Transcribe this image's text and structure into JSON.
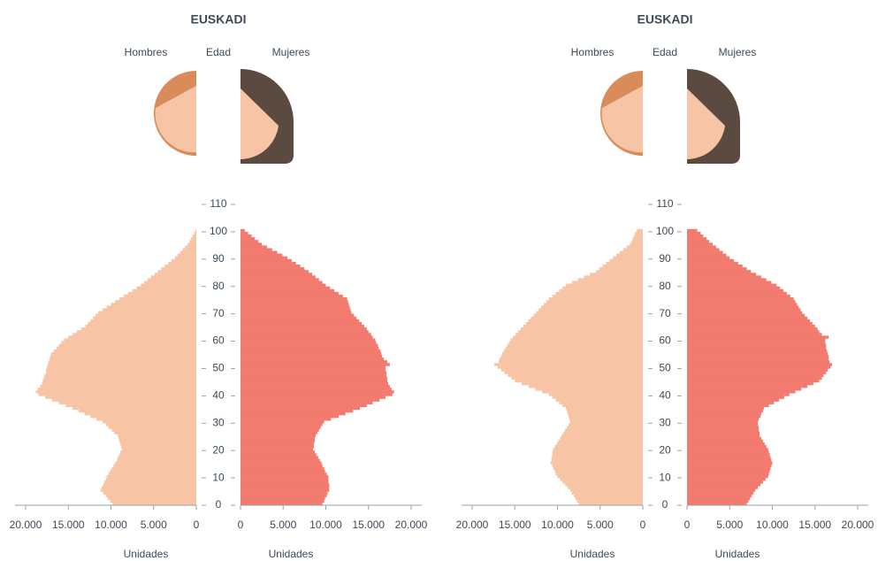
{
  "chart_data": [
    {
      "type": "population-pyramid",
      "title": "EUSKADI",
      "y_label": "Edad",
      "x_label": "Unidades",
      "x": [
        0,
        1,
        2,
        3,
        4,
        5,
        6,
        7,
        8,
        9,
        10,
        11,
        12,
        13,
        14,
        15,
        16,
        17,
        18,
        19,
        20,
        21,
        22,
        23,
        24,
        25,
        26,
        27,
        28,
        29,
        30,
        31,
        32,
        33,
        34,
        35,
        36,
        37,
        38,
        39,
        40,
        41,
        42,
        43,
        44,
        45,
        46,
        47,
        48,
        49,
        50,
        51,
        52,
        53,
        54,
        55,
        56,
        57,
        58,
        59,
        60,
        61,
        62,
        63,
        64,
        65,
        66,
        67,
        68,
        69,
        70,
        71,
        72,
        73,
        74,
        75,
        76,
        77,
        78,
        79,
        80,
        81,
        82,
        83,
        84,
        85,
        86,
        87,
        88,
        89,
        90,
        91,
        92,
        93,
        94,
        95,
        96,
        97,
        98,
        99,
        100
      ],
      "series": [
        {
          "name": "Hombres",
          "color": "#f7c4a5",
          "values": [
            9800,
            10100,
            10400,
            10600,
            10900,
            11200,
            11100,
            10900,
            10800,
            10600,
            10500,
            10300,
            10100,
            9900,
            9700,
            9500,
            9300,
            9200,
            9000,
            8900,
            8700,
            8800,
            8900,
            9000,
            9100,
            9200,
            9600,
            9900,
            10300,
            10600,
            11000,
            11700,
            12400,
            13100,
            13800,
            14500,
            15300,
            16100,
            16900,
            17700,
            18500,
            18800,
            18600,
            18300,
            18100,
            18000,
            17900,
            17800,
            17600,
            17600,
            17500,
            17400,
            17300,
            17200,
            17100,
            17000,
            16700,
            16400,
            16100,
            15800,
            15500,
            15000,
            14500,
            14000,
            13500,
            13000,
            12700,
            12400,
            12100,
            11800,
            11500,
            11000,
            10500,
            10000,
            9500,
            9000,
            8500,
            8000,
            7500,
            7000,
            6500,
            6100,
            5700,
            5300,
            4900,
            4500,
            4100,
            3700,
            3300,
            2900,
            2500,
            2200,
            1900,
            1600,
            1300,
            1000,
            800,
            600,
            400,
            250,
            100
          ]
        },
        {
          "name": "Mujeres",
          "color": "#f27a6e",
          "values": [
            9600,
            9800,
            9900,
            10100,
            10200,
            10400,
            10400,
            10400,
            10300,
            10300,
            10300,
            10100,
            9900,
            9800,
            9600,
            9500,
            9300,
            9100,
            8900,
            8700,
            8500,
            8600,
            8600,
            8700,
            8700,
            8800,
            9000,
            9200,
            9400,
            9600,
            9800,
            10600,
            11500,
            12300,
            13200,
            14000,
            14800,
            15500,
            16300,
            17000,
            17800,
            18000,
            17700,
            17500,
            17300,
            17200,
            17200,
            17100,
            17100,
            17000,
            17000,
            17500,
            17200,
            16800,
            16600,
            16500,
            16400,
            16200,
            16100,
            15900,
            15800,
            15500,
            15300,
            15000,
            14800,
            14500,
            14200,
            13900,
            13600,
            13300,
            13000,
            12900,
            12800,
            12700,
            12600,
            12500,
            12000,
            11500,
            11000,
            10500,
            10000,
            9600,
            9200,
            8800,
            8400,
            8000,
            7500,
            7000,
            6500,
            6000,
            5500,
            4900,
            4300,
            3700,
            3100,
            2500,
            2100,
            1700,
            1300,
            900,
            500
          ]
        }
      ],
      "xlim": [
        0,
        20000
      ],
      "xticks": [
        0,
        {
          "value": 5000,
          "label": "5.000"
        },
        {
          "value": 10000,
          "label": "10.000"
        },
        {
          "value": 15000,
          "label": "15.000"
        },
        {
          "value": 20000,
          "label": "20.000"
        }
      ],
      "ylim": [
        0,
        110
      ],
      "yticks": [
        0,
        10,
        20,
        30,
        40,
        50,
        60,
        70,
        80,
        90,
        100,
        110
      ]
    },
    {
      "type": "population-pyramid",
      "title": "EUSKADI",
      "y_label": "Edad",
      "x_label": "Unidades",
      "x": [
        0,
        1,
        2,
        3,
        4,
        5,
        6,
        7,
        8,
        9,
        10,
        11,
        12,
        13,
        14,
        15,
        16,
        17,
        18,
        19,
        20,
        21,
        22,
        23,
        24,
        25,
        26,
        27,
        28,
        29,
        30,
        31,
        32,
        33,
        34,
        35,
        36,
        37,
        38,
        39,
        40,
        41,
        42,
        43,
        44,
        45,
        46,
        47,
        48,
        49,
        50,
        51,
        52,
        53,
        54,
        55,
        56,
        57,
        58,
        59,
        60,
        61,
        62,
        63,
        64,
        65,
        66,
        67,
        68,
        69,
        70,
        71,
        72,
        73,
        74,
        75,
        76,
        77,
        78,
        79,
        80,
        81,
        82,
        83,
        84,
        85,
        86,
        87,
        88,
        89,
        90,
        91,
        92,
        93,
        94,
        95,
        96,
        97,
        98,
        99,
        100
      ],
      "series": [
        {
          "name": "Hombres",
          "color": "#f7c4a5",
          "values": [
            7500,
            7700,
            7900,
            8100,
            8300,
            8500,
            8800,
            9100,
            9400,
            9700,
            10000,
            10200,
            10300,
            10500,
            10600,
            10800,
            10700,
            10700,
            10600,
            10600,
            10500,
            10300,
            10100,
            9900,
            9700,
            9500,
            9300,
            9100,
            8900,
            8700,
            8500,
            8600,
            8700,
            8800,
            8900,
            9000,
            9400,
            9800,
            10200,
            10600,
            11000,
            11800,
            12600,
            13400,
            14200,
            15000,
            15400,
            15800,
            16200,
            16600,
            17000,
            17400,
            16900,
            16800,
            16600,
            16500,
            16300,
            16100,
            15900,
            15700,
            15500,
            15200,
            14900,
            14600,
            14300,
            14000,
            13700,
            13400,
            13100,
            12800,
            12500,
            12200,
            11900,
            11600,
            11300,
            11000,
            10600,
            10200,
            9800,
            9400,
            9000,
            8300,
            7600,
            6900,
            6200,
            5500,
            5100,
            4700,
            4300,
            3900,
            3500,
            3100,
            2700,
            2300,
            1900,
            1500,
            1300,
            1200,
            1000,
            900,
            700
          ]
        },
        {
          "name": "Mujeres",
          "color": "#f27a6e",
          "values": [
            7000,
            7200,
            7400,
            7600,
            7800,
            8000,
            8300,
            8600,
            8900,
            9200,
            9500,
            9600,
            9700,
            9800,
            9900,
            10000,
            9900,
            9800,
            9700,
            9600,
            9500,
            9300,
            9100,
            8900,
            8700,
            8500,
            8500,
            8400,
            8400,
            8300,
            8300,
            8400,
            8600,
            8700,
            8900,
            9000,
            9600,
            10200,
            10800,
            11400,
            12000,
            12700,
            13400,
            14100,
            14800,
            15500,
            15800,
            16000,
            16300,
            16500,
            16800,
            17000,
            16700,
            16600,
            16600,
            16500,
            16400,
            16300,
            16300,
            16200,
            16200,
            16600,
            15800,
            15500,
            15300,
            15000,
            14700,
            14400,
            14100,
            13800,
            13500,
            13300,
            13100,
            12900,
            12700,
            12500,
            12100,
            11700,
            11300,
            10900,
            10500,
            9900,
            9300,
            8700,
            8100,
            7500,
            7000,
            6500,
            6000,
            5500,
            5000,
            4600,
            4200,
            3800,
            3400,
            3000,
            2600,
            2300,
            1900,
            1600,
            1200
          ]
        }
      ],
      "xlim": [
        0,
        20000
      ],
      "xticks": [
        0,
        {
          "value": 5000,
          "label": "5.000"
        },
        {
          "value": 10000,
          "label": "10.000"
        },
        {
          "value": 15000,
          "label": "15.000"
        },
        {
          "value": 20000,
          "label": "20.000"
        }
      ],
      "ylim": [
        0,
        110
      ],
      "yticks": [
        0,
        10,
        20,
        30,
        40,
        50,
        60,
        70,
        80,
        90,
        100,
        110
      ]
    }
  ]
}
